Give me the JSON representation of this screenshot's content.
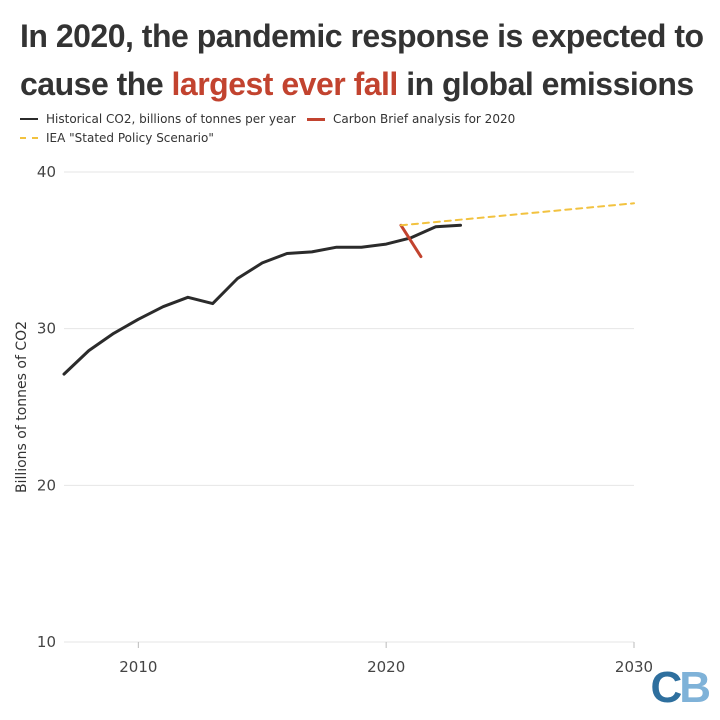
{
  "title": {
    "part1": "In 2020, the pandemic response is expected to cause the ",
    "highlight": "largest ever fall",
    "part2": " in global emissions"
  },
  "colors": {
    "historical": "#2b2b2b",
    "carbon_brief": "#c2432f",
    "iea": "#f2c23f",
    "grid": "#e6e6e6"
  },
  "logo": {
    "c": "C",
    "b": "B"
  },
  "chart_data": {
    "type": "line",
    "title": "In 2020, the pandemic response is expected to cause the largest ever fall in global emissions",
    "xlabel": "",
    "ylabel": "Billions of tonnes of CO2",
    "xlim": [
      2007,
      2030
    ],
    "ylim": [
      10,
      40
    ],
    "x_ticks": [
      2010,
      2020,
      2030
    ],
    "y_ticks": [
      10,
      20,
      30,
      40
    ],
    "grid": true,
    "legend_position": "top-left",
    "series": [
      {
        "name": "Historical CO2, billions of tonnes per year",
        "style": "solid",
        "points": [
          [
            2007,
            27.1
          ],
          [
            2008,
            28.6
          ],
          [
            2009,
            29.7
          ],
          [
            2010,
            30.6
          ],
          [
            2011,
            31.4
          ],
          [
            2012,
            32.0
          ],
          [
            2013,
            31.6
          ],
          [
            2014,
            33.2
          ],
          [
            2015,
            34.2
          ],
          [
            2016,
            34.8
          ],
          [
            2017,
            34.9
          ],
          [
            2018,
            35.2
          ],
          [
            2019,
            35.2
          ],
          [
            2020,
            35.4
          ],
          [
            2021,
            35.8
          ],
          [
            2022,
            36.5
          ],
          [
            2023,
            36.6
          ]
        ]
      },
      {
        "name": "Carbon Brief analysis for 2020",
        "style": "solid",
        "points": [
          [
            2020.6,
            36.6
          ],
          [
            2021.4,
            34.6
          ]
        ]
      },
      {
        "name": "IEA \"Stated Policy Scenario\"",
        "style": "dashed",
        "points": [
          [
            2020.6,
            36.6
          ],
          [
            2030,
            38.0
          ]
        ]
      }
    ]
  }
}
